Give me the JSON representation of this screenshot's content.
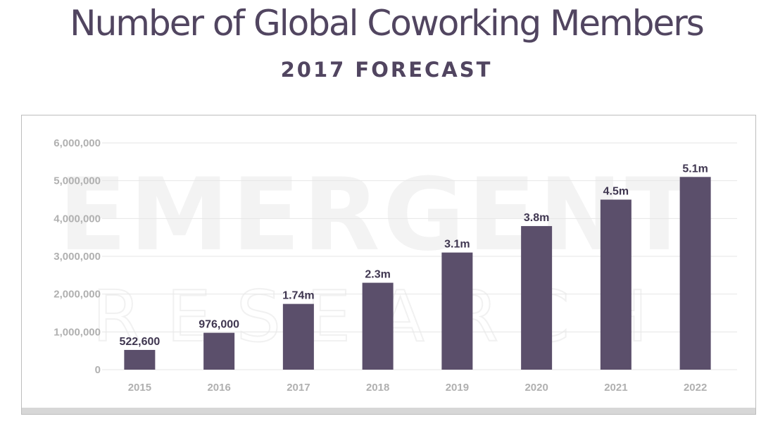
{
  "title": "Number of Global Coworking Members",
  "subtitle": "2017 FORECAST",
  "watermark": {
    "line1": "EMERGENT",
    "line2": "RESEARCH"
  },
  "colors": {
    "bar": "#5b4f6b",
    "title": "#514560",
    "grid": "#e6e6e6",
    "tick": "#b0b0b0"
  },
  "chart_data": {
    "type": "bar",
    "title": "Number of Global Coworking Members",
    "subtitle": "2017 FORECAST",
    "categories": [
      "2015",
      "2016",
      "2017",
      "2018",
      "2019",
      "2020",
      "2021",
      "2022"
    ],
    "values": [
      522600,
      976000,
      1740000,
      2300000,
      3100000,
      3800000,
      4500000,
      5100000
    ],
    "data_labels": [
      "522,600",
      "976,000",
      "1.74m",
      "2.3m",
      "3.1m",
      "3.8m",
      "4.5m",
      "5.1m"
    ],
    "yticks": [
      0,
      1000000,
      2000000,
      3000000,
      4000000,
      5000000,
      6000000
    ],
    "ytick_labels": [
      "0",
      "1,000,000",
      "2,000,000",
      "3,000,000",
      "4,000,000",
      "5,000,000",
      "6,000,000"
    ],
    "ylim": [
      0,
      6000000
    ],
    "xlabel": "",
    "ylabel": "",
    "grid": true,
    "legend": "none"
  }
}
